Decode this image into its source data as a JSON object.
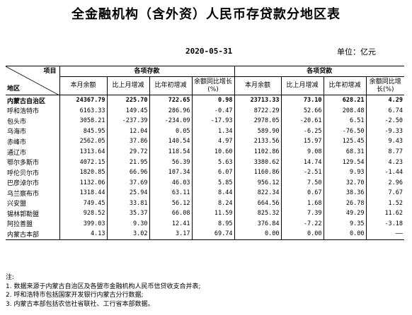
{
  "title": "全金融机构（含外资）人民币存贷款分地区表",
  "date": "2020-05-31",
  "unit": "单位：亿元",
  "header": {
    "item": "项目",
    "region": "地区",
    "deposits": "各项存款",
    "loans": "各项贷款",
    "cols": [
      "本月余额",
      "比上月增减",
      "比年初增减",
      "余额同比增长(%)"
    ]
  },
  "rows": [
    {
      "region": "内蒙古自治区",
      "d": [
        "24367.79",
        "225.70",
        "722.65",
        "0.98"
      ],
      "l": [
        "23713.33",
        "73.10",
        "628.21",
        "4.29"
      ]
    },
    {
      "region": "呼和浩特市",
      "d": [
        "6163.33",
        "149.45",
        "286.96",
        "-0.47"
      ],
      "l": [
        "8722.29",
        "52.66",
        "208.48",
        "6.74"
      ]
    },
    {
      "region": "包头市",
      "d": [
        "3058.21",
        "-237.39",
        "-234.09",
        "-17.93"
      ],
      "l": [
        "2978.05",
        "-20.61",
        "6.51",
        "-2.50"
      ]
    },
    {
      "region": "乌海市",
      "d": [
        "845.95",
        "12.04",
        "0.05",
        "1.34"
      ],
      "l": [
        "589.90",
        "-6.25",
        "-76.50",
        "-9.33"
      ]
    },
    {
      "region": "赤峰市",
      "d": [
        "2562.05",
        "37.86",
        "140.54",
        "4.97"
      ],
      "l": [
        "2133.56",
        "15.97",
        "125.45",
        "9.43"
      ]
    },
    {
      "region": "通辽市",
      "d": [
        "1313.64",
        "29.72",
        "118.54",
        "10.60"
      ],
      "l": [
        "1102.86",
        "9.08",
        "68.31",
        "8.77"
      ]
    },
    {
      "region": "鄂尔多斯市",
      "d": [
        "4072.15",
        "21.95",
        "56.39",
        "5.63"
      ],
      "l": [
        "3380.62",
        "14.74",
        "129.54",
        "4.23"
      ]
    },
    {
      "region": "呼伦贝尔市",
      "d": [
        "1820.85",
        "66.96",
        "107.34",
        "6.07"
      ],
      "l": [
        "1160.86",
        "-2.51",
        "9.93",
        "-1.44"
      ]
    },
    {
      "region": "巴彦淖尔市",
      "d": [
        "1132.06",
        "37.69",
        "46.03",
        "5.85"
      ],
      "l": [
        "956.12",
        "7.50",
        "32.70",
        "2.96"
      ]
    },
    {
      "region": "乌兰察布市",
      "d": [
        "1318.44",
        "25.94",
        "63.11",
        "8.44"
      ],
      "l": [
        "822.34",
        "0.67",
        "38.36",
        "7.67"
      ]
    },
    {
      "region": "兴安盟",
      "d": [
        "749.45",
        "33.81",
        "56.12",
        "8.24"
      ],
      "l": [
        "664.56",
        "1.68",
        "26.78",
        "1.52"
      ]
    },
    {
      "region": "锡林郭勒盟",
      "d": [
        "928.52",
        "35.37",
        "66.08",
        "11.59"
      ],
      "l": [
        "825.32",
        "7.39",
        "49.29",
        "11.62"
      ]
    },
    {
      "region": "阿拉善盟",
      "d": [
        "399.03",
        "9.30",
        "12.41",
        "8.95"
      ],
      "l": [
        "376.84",
        "-7.22",
        "9.35",
        "-3.18"
      ]
    },
    {
      "region": "内蒙古本部",
      "d": [
        "4.13",
        "3.02",
        "3.17",
        "69.74"
      ],
      "l": [
        "0.00",
        "0.00",
        "0.00",
        "——"
      ]
    }
  ],
  "notes": [
    "注:",
    "1. 数据来源于内蒙古自治区及各盟市金融机构人民币信贷收支合并表;",
    "2. 呼和浩特市包括国家开发银行内蒙古分行数据;",
    "3. 内蒙古本部包括农信社省联社、工行省本部数据。"
  ]
}
